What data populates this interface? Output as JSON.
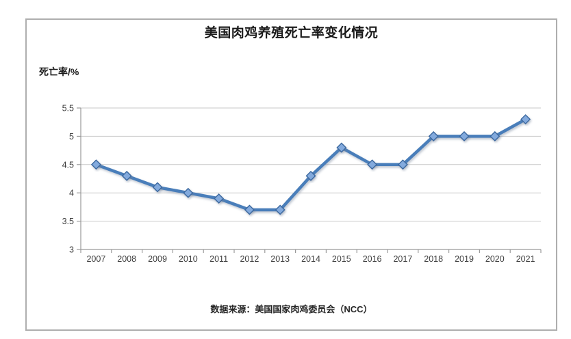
{
  "title": "美国肉鸡养殖死亡率变化情况",
  "y_axis_label": "死亡率/%",
  "source_note": "数据来源：美国国家肉鸡委员会（NCC）",
  "colors": {
    "line": "#4a7eba",
    "marker_fill": "#83aadd",
    "marker_border": "#3b689f",
    "gridline": "#c9c9c9",
    "axis": "#9a9a9a",
    "tick_text": "#3d3d3d",
    "frame_border": "#aeaeae"
  },
  "chart_data": {
    "type": "line",
    "categories": [
      "2007",
      "2008",
      "2009",
      "2010",
      "2011",
      "2012",
      "2013",
      "2014",
      "2015",
      "2016",
      "2017",
      "2018",
      "2019",
      "2020",
      "2021"
    ],
    "series": [
      {
        "name": "死亡率",
        "values": [
          4.5,
          4.3,
          4.1,
          4.0,
          3.9,
          3.7,
          3.7,
          4.3,
          4.8,
          4.5,
          4.5,
          5.0,
          5.0,
          5.0,
          5.3
        ]
      }
    ],
    "title": "美国肉鸡养殖死亡率变化情况",
    "xlabel": "",
    "ylabel": "死亡率/%",
    "ylim": [
      3,
      5.5
    ],
    "y_ticks": [
      3,
      3.5,
      4,
      4.5,
      5,
      5.5
    ],
    "grid": true,
    "legend": false,
    "source": "数据来源：美国国家肉鸡委员会（NCC）"
  }
}
